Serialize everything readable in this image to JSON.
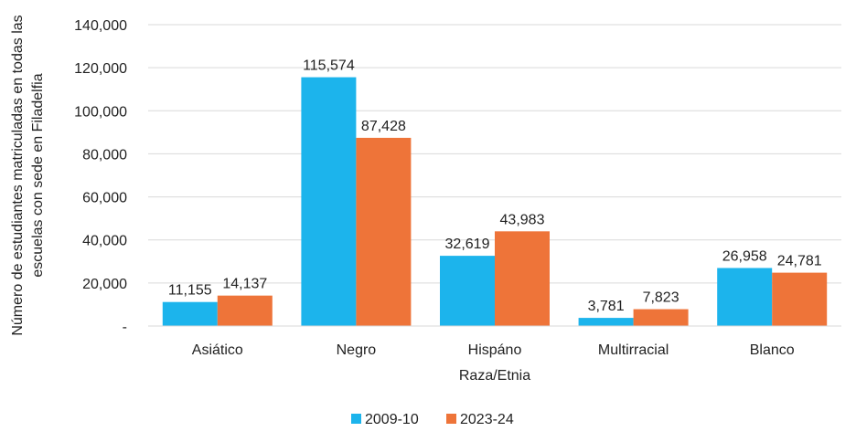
{
  "chart_data": {
    "type": "bar",
    "title": "",
    "xlabel": "Raza/Etnia",
    "ylabel_lines": [
      "Número de estudiantes matriculadas en todas las",
      "escuelas con sede en Filadelfia"
    ],
    "categories": [
      "Asiático",
      "Negro",
      "Hispáno",
      "Multirracial",
      "Blanco"
    ],
    "series": [
      {
        "name": "2009-10",
        "color": "#1cb4ec",
        "values": [
          11155,
          115574,
          32619,
          3781,
          26958
        ],
        "labels": [
          "11,155",
          "115,574",
          "32,619",
          "3,781",
          "26,958"
        ]
      },
      {
        "name": "2023-24",
        "color": "#ee7439",
        "values": [
          14137,
          87428,
          43983,
          7823,
          24781
        ],
        "labels": [
          "14,137",
          "87,428",
          "43,983",
          "7,823",
          "24,781"
        ]
      }
    ],
    "ylim": [
      0,
      140000
    ],
    "yticks": [
      0,
      20000,
      40000,
      60000,
      80000,
      100000,
      120000,
      140000
    ],
    "ytick_labels": [
      "-",
      "20,000",
      "40,000",
      "60,000",
      "80,000",
      "100,000",
      "120,000",
      "140,000"
    ],
    "grid": true,
    "gridColor": "#d9d9d9",
    "legend_position": "bottom-center"
  }
}
